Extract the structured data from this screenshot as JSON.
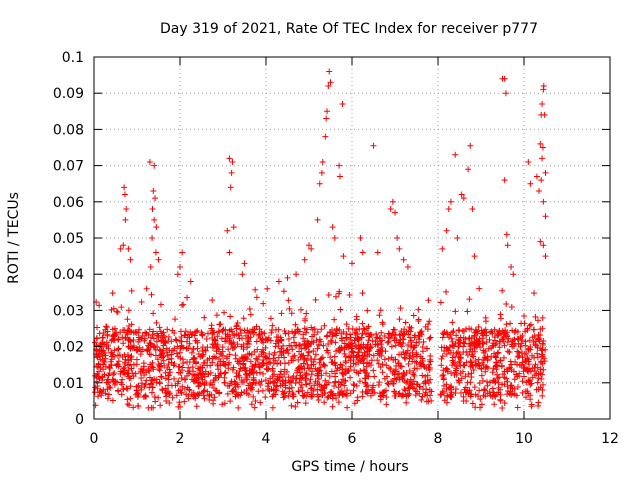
{
  "chart_data": {
    "type": "scatter",
    "title": "Day 319 of 2021, Rate Of TEC Index for receiver p777",
    "xlabel": "GPS time / hours",
    "ylabel": "ROTI / TECUs",
    "xlim": [
      0,
      12
    ],
    "ylim": [
      0,
      0.1
    ],
    "x_ticks": [
      "0",
      "2",
      "4",
      "6",
      "8",
      "10",
      "12"
    ],
    "y_ticks": [
      "0",
      "0.01",
      "0.02",
      "0.03",
      "0.04",
      "0.05",
      "0.06",
      "0.07",
      "0.08",
      "0.09",
      "0.1"
    ],
    "grid": true,
    "marker": "+",
    "color": "#ff0000",
    "series": [
      {
        "name": "ROTI",
        "note": "Dense background band ~0.003-0.03 TECU across 0-10.5 h (generated deterministically by the script); notable elevated points listed below",
        "points": [
          [
            0.7,
            0.064
          ],
          [
            0.72,
            0.062
          ],
          [
            0.75,
            0.058
          ],
          [
            0.73,
            0.055
          ],
          [
            0.68,
            0.048
          ],
          [
            0.62,
            0.047
          ],
          [
            0.8,
            0.047
          ],
          [
            0.85,
            0.044
          ],
          [
            1.3,
            0.071
          ],
          [
            1.4,
            0.07
          ],
          [
            1.38,
            0.063
          ],
          [
            1.42,
            0.061
          ],
          [
            1.36,
            0.058
          ],
          [
            1.4,
            0.055
          ],
          [
            1.45,
            0.053
          ],
          [
            1.35,
            0.05
          ],
          [
            1.44,
            0.046
          ],
          [
            1.5,
            0.044
          ],
          [
            1.32,
            0.042
          ],
          [
            2.05,
            0.046
          ],
          [
            2.0,
            0.042
          ],
          [
            1.95,
            0.04
          ],
          [
            2.25,
            0.038
          ],
          [
            3.15,
            0.072
          ],
          [
            3.22,
            0.071
          ],
          [
            3.2,
            0.068
          ],
          [
            3.18,
            0.064
          ],
          [
            3.1,
            0.052
          ],
          [
            3.25,
            0.053
          ],
          [
            3.15,
            0.046
          ],
          [
            3.5,
            0.043
          ],
          [
            3.45,
            0.04
          ],
          [
            4.3,
            0.038
          ],
          [
            4.5,
            0.039
          ],
          [
            4.7,
            0.04
          ],
          [
            4.9,
            0.044
          ],
          [
            5.0,
            0.048
          ],
          [
            5.05,
            0.047
          ],
          [
            5.2,
            0.055
          ],
          [
            5.25,
            0.065
          ],
          [
            5.3,
            0.068
          ],
          [
            5.32,
            0.071
          ],
          [
            5.38,
            0.078
          ],
          [
            5.4,
            0.083
          ],
          [
            5.42,
            0.085
          ],
          [
            5.45,
            0.092
          ],
          [
            5.47,
            0.096
          ],
          [
            5.5,
            0.093
          ],
          [
            5.55,
            0.053
          ],
          [
            5.6,
            0.05
          ],
          [
            5.7,
            0.07
          ],
          [
            5.72,
            0.067
          ],
          [
            5.78,
            0.087
          ],
          [
            5.8,
            0.045
          ],
          [
            6.0,
            0.043
          ],
          [
            6.2,
            0.05
          ],
          [
            6.25,
            0.046
          ],
          [
            6.5,
            0.0755
          ],
          [
            6.6,
            0.046
          ],
          [
            6.9,
            0.058
          ],
          [
            6.95,
            0.06
          ],
          [
            7.0,
            0.057
          ],
          [
            7.05,
            0.05
          ],
          [
            7.1,
            0.047
          ],
          [
            7.2,
            0.044
          ],
          [
            7.3,
            0.042
          ],
          [
            8.1,
            0.047
          ],
          [
            8.2,
            0.052
          ],
          [
            8.25,
            0.058
          ],
          [
            8.3,
            0.06
          ],
          [
            8.4,
            0.073
          ],
          [
            8.45,
            0.05
          ],
          [
            8.55,
            0.062
          ],
          [
            8.6,
            0.061
          ],
          [
            8.75,
            0.0755
          ],
          [
            8.7,
            0.069
          ],
          [
            8.8,
            0.058
          ],
          [
            8.85,
            0.045
          ],
          [
            9.5,
            0.094
          ],
          [
            9.55,
            0.094
          ],
          [
            9.58,
            0.09
          ],
          [
            9.55,
            0.066
          ],
          [
            9.6,
            0.051
          ],
          [
            9.62,
            0.048
          ],
          [
            9.7,
            0.042
          ],
          [
            9.75,
            0.04
          ],
          [
            10.1,
            0.071
          ],
          [
            10.15,
            0.065
          ],
          [
            10.3,
            0.067
          ],
          [
            10.38,
            0.076
          ],
          [
            10.4,
            0.084
          ],
          [
            10.42,
            0.087
          ],
          [
            10.45,
            0.091
          ],
          [
            10.46,
            0.092
          ],
          [
            10.48,
            0.084
          ],
          [
            10.44,
            0.075
          ],
          [
            10.42,
            0.072
          ],
          [
            10.4,
            0.066
          ],
          [
            10.35,
            0.063
          ],
          [
            10.5,
            0.068
          ],
          [
            10.45,
            0.06
          ],
          [
            10.5,
            0.056
          ],
          [
            10.38,
            0.049
          ],
          [
            10.45,
            0.048
          ],
          [
            10.5,
            0.045
          ]
        ]
      }
    ]
  }
}
